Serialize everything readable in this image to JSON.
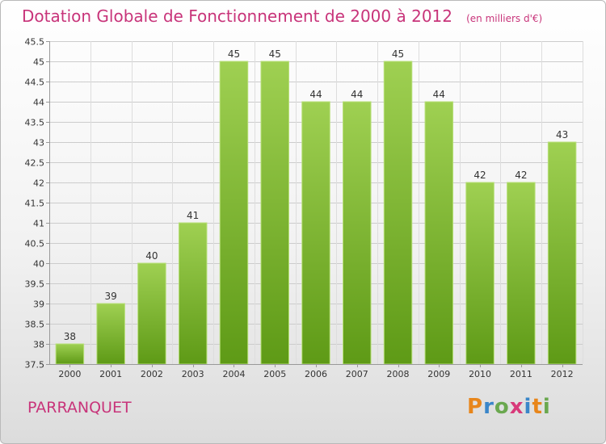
{
  "header": {
    "title": "Dotation Globale de Fonctionnement de 2000 à 2012",
    "unit": "(en milliers d'€)"
  },
  "footer": {
    "town": "PARRANQUET",
    "logo_text": "Proxiti",
    "logo_colors": [
      "#e8861b",
      "#3a86c9",
      "#6aa84f",
      "#d83a7a",
      "#3a86c9",
      "#e8861b",
      "#6aa84f"
    ]
  },
  "chart_data": {
    "type": "bar",
    "categories": [
      "2000",
      "2001",
      "2002",
      "2003",
      "2004",
      "2005",
      "2006",
      "2007",
      "2008",
      "2009",
      "2010",
      "2011",
      "2012"
    ],
    "values": [
      38,
      39,
      40,
      41,
      45,
      45,
      44,
      44,
      45,
      44,
      42,
      42,
      43
    ],
    "data_labels": [
      "38",
      "39",
      "40",
      "41",
      "45",
      "45",
      "44",
      "44",
      "45",
      "44",
      "42",
      "42",
      "43"
    ],
    "yticks": [
      37.5,
      38,
      38.5,
      39,
      39.5,
      40,
      40.5,
      41,
      41.5,
      42,
      42.5,
      43,
      43.5,
      44,
      44.5,
      45,
      45.5
    ],
    "ylim": [
      37.5,
      45.5
    ],
    "grid": true,
    "bar_color_top": "#9fd052",
    "bar_color_bottom": "#5e9a16",
    "grid_color": "#cccccc"
  }
}
